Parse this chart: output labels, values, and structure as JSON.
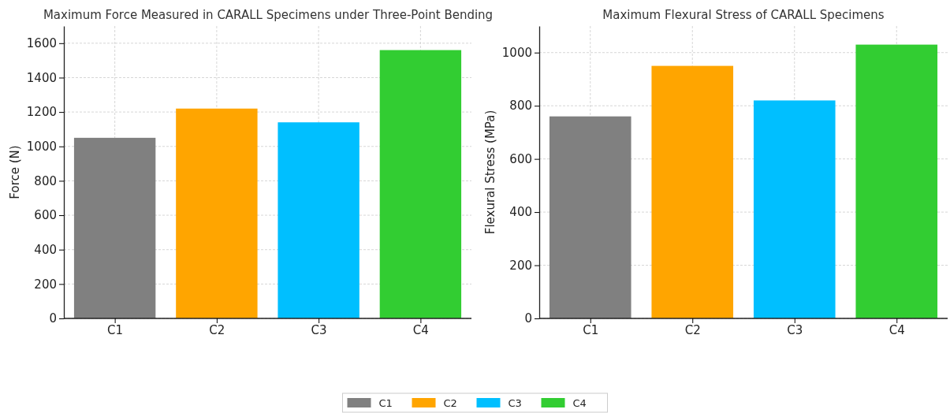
{
  "chart_data": [
    {
      "type": "bar",
      "title": "Maximum Force Measured in CARALL Specimens under Three-Point Bending",
      "ylabel": "Force (N)",
      "categories": [
        "C1",
        "C2",
        "C3",
        "C4"
      ],
      "stacked": true,
      "series": [
        {
          "name": "C1",
          "color": "#808080",
          "values": [
            1050,
            null,
            null,
            null
          ]
        },
        {
          "name": "C2",
          "color": "#ffa500",
          "values": [
            null,
            1220,
            null,
            null
          ]
        },
        {
          "name": "C3",
          "color": "#00bfff",
          "values": [
            null,
            null,
            1140,
            null
          ]
        },
        {
          "name": "C4",
          "color": "#32cd32",
          "values": [
            null,
            null,
            null,
            1560
          ]
        }
      ],
      "ylim": [
        0,
        1700
      ],
      "yticks": [
        0,
        200,
        400,
        600,
        800,
        1000,
        1200,
        1400,
        1600
      ],
      "grid": true,
      "legend": "bottom"
    },
    {
      "type": "bar",
      "title": "Maximum Flexural Stress of CARALL Specimens",
      "ylabel": "Flexural Stress (MPa)",
      "categories": [
        "C1",
        "C2",
        "C3",
        "C4"
      ],
      "stacked": true,
      "series": [
        {
          "color": "#808080",
          "values": [
            760,
            null,
            null,
            null
          ]
        },
        {
          "color": "#ffa500",
          "values": [
            null,
            950,
            null,
            null
          ]
        },
        {
          "color": "#00bfff",
          "values": [
            null,
            null,
            820,
            null
          ]
        },
        {
          "color": "#32cd32",
          "values": [
            null,
            null,
            null,
            1030
          ]
        }
      ],
      "ylim": [
        0,
        1100
      ],
      "yticks": [
        0,
        200,
        400,
        600,
        800,
        1000
      ],
      "grid": true
    }
  ]
}
